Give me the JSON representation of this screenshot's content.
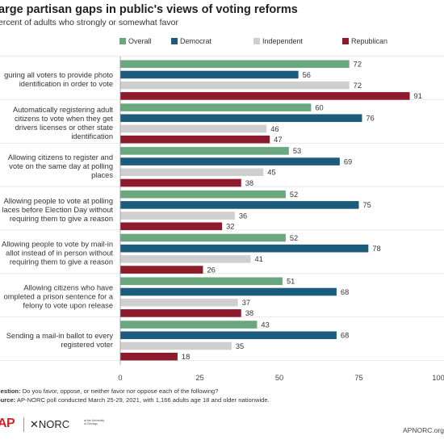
{
  "title": "arge partisan gaps in public's views of voting reforms",
  "subtitle": "ercent of adults who strongly or somewhat favor",
  "colors": {
    "Overall": "#6aa77f",
    "Democrat": "#1b5b7c",
    "Independent": "#cfcfcf",
    "Republican": "#8e1b2c"
  },
  "chart_data": {
    "type": "bar",
    "orientation": "horizontal",
    "categories": [
      [
        "guring all voters to provide photo",
        "identification in order to vote"
      ],
      [
        "Automatically registering adult",
        "citizens to vote when they get",
        "drivers licenses or other state",
        "identification"
      ],
      [
        "Allowing citizens to register and",
        "vote on the same day at polling",
        "places"
      ],
      [
        "Allowing people to vote at polling",
        "laces before Election Day without",
        "requiring them to give a reason"
      ],
      [
        "Allowing people to vote by mail-in",
        "allot instead of in person without",
        "requiring them to give a reason"
      ],
      [
        "Allowing citizens who have",
        "ompleted a prison sentence for a",
        "felony to vote upon release"
      ],
      [
        "Sending a mail-in ballot to every",
        "registered voter"
      ]
    ],
    "series": [
      {
        "name": "Overall",
        "values": [
          72,
          60,
          53,
          52,
          52,
          51,
          43
        ]
      },
      {
        "name": "Democrat",
        "values": [
          56,
          76,
          69,
          75,
          78,
          68,
          68
        ]
      },
      {
        "name": "Independent",
        "values": [
          72,
          46,
          45,
          36,
          41,
          37,
          35
        ]
      },
      {
        "name": "Republican",
        "values": [
          91,
          47,
          38,
          32,
          26,
          38,
          18
        ]
      }
    ],
    "xlim": [
      0,
      100
    ],
    "xticks": [
      0,
      25,
      50,
      75,
      100
    ],
    "xtick_labels": [
      "0",
      "25",
      "50",
      "75",
      "100"
    ],
    "legend_position": "top",
    "grid": false
  },
  "footer": {
    "question_label": "uestion:",
    "question_text": " Do you favor, oppose, or neither favor nor oppose each of the following?",
    "source_label": "ource:",
    "source_text": " AP-NORC poll conducted March 25-29, 2021, with 1,166 adults age 18 and older nationwide."
  },
  "logos": {
    "ap": "AP",
    "norc": "✕NORC",
    "norc_sub": "at the University of Chicago",
    "site": "APNORC.org"
  }
}
